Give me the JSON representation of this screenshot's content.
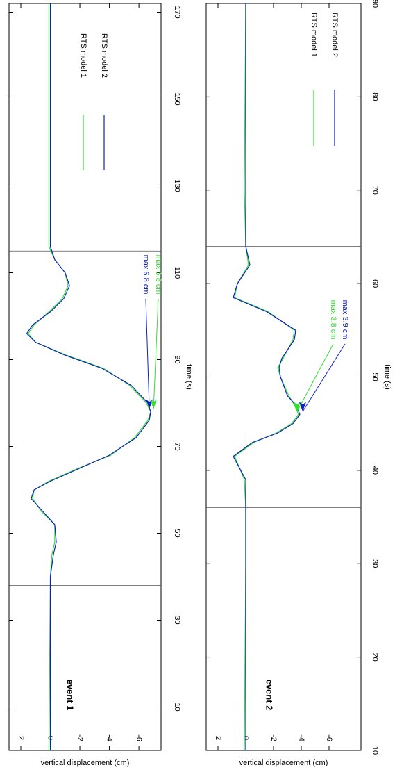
{
  "chart_data": [
    {
      "type": "line",
      "x_label": "time (s)",
      "y_label": "vertical displacement (cm)",
      "event_label": "event 1",
      "x": [
        0,
        40,
        45,
        48,
        52,
        55,
        58,
        60,
        62,
        65,
        68,
        72,
        76,
        78,
        80,
        84,
        88,
        91,
        94,
        96,
        98,
        101,
        104,
        107,
        110,
        113,
        116,
        140,
        172
      ],
      "series": [
        {
          "name": "RTS model 1",
          "color": "#33dd33",
          "values": [
            0.1,
            0,
            -0.1,
            -0.3,
            -0.3,
            0.6,
            1.2,
            1.1,
            0.1,
            -1.9,
            -4.1,
            -5.7,
            -6.6,
            -6.8,
            -6.5,
            -5.4,
            -3.6,
            -1.1,
            1.0,
            1.5,
            1.1,
            0.1,
            -0.8,
            -1.2,
            -1.0,
            -0.3,
            0.1,
            0.1,
            0.1
          ]
        },
        {
          "name": "RTS model 2",
          "color": "#1020c0",
          "values": [
            0,
            0,
            -0.2,
            -0.4,
            -0.3,
            0.5,
            1.3,
            1.1,
            0,
            -2.0,
            -4.0,
            -5.8,
            -6.7,
            -6.8,
            -6.6,
            -5.5,
            -3.5,
            -1.0,
            1.0,
            1.6,
            1.2,
            0,
            -0.9,
            -1.3,
            -1.0,
            -0.3,
            0,
            0,
            0
          ]
        }
      ],
      "annotations": [
        {
          "text": "max 6.8 cm",
          "series": 1,
          "x": 78
        },
        {
          "text": "max 6.8 cm",
          "series": 0,
          "x": 78
        }
      ],
      "vlines": [
        38,
        115
      ],
      "xlim": [
        0,
        172
      ],
      "xticks": [
        10,
        30,
        50,
        70,
        90,
        110,
        130,
        150,
        170
      ],
      "ylim": [
        -7.5,
        2.8
      ],
      "yticks": [
        2,
        0,
        -2,
        -4,
        -6
      ]
    },
    {
      "type": "line",
      "x_label": "time (s)",
      "y_label": "vertical displacement (cm)",
      "event_label": "event 2",
      "x": [
        10,
        30,
        36,
        39,
        41.5,
        43,
        44,
        45,
        46,
        47,
        48,
        50,
        51,
        52,
        54,
        55,
        57,
        58.5,
        60,
        62,
        64,
        70,
        90
      ],
      "series": [
        {
          "name": "RTS model 1",
          "color": "#33dd33",
          "values": [
            0.1,
            0,
            0,
            0.1,
            0.8,
            -0.6,
            -2.2,
            -3.3,
            -3.8,
            -3.5,
            -3.1,
            -2.5,
            -2.3,
            -2.7,
            -3.4,
            -3.5,
            -1.6,
            0.8,
            0.6,
            -0.2,
            0,
            0.1,
            0
          ]
        },
        {
          "name": "RTS model 2",
          "color": "#1020c0",
          "values": [
            0,
            0,
            0,
            0,
            0.9,
            -0.5,
            -2.3,
            -3.4,
            -3.9,
            -3.6,
            -3.0,
            -2.5,
            -2.4,
            -2.6,
            -3.5,
            -3.6,
            -1.5,
            0.9,
            0.6,
            -0.3,
            0,
            0,
            0
          ]
        }
      ],
      "annotations": [
        {
          "text": "max 3.8 cm",
          "series": 0,
          "x": 46
        },
        {
          "text": "max 3.9 cm",
          "series": 1,
          "x": 46
        }
      ],
      "vlines": [
        36,
        64
      ],
      "xlim": [
        10,
        90
      ],
      "xticks": [
        10,
        20,
        30,
        40,
        50,
        60,
        70,
        80,
        90
      ],
      "ylim": [
        -8.3,
        2.85
      ],
      "yticks": [
        2,
        0,
        -2,
        -4,
        -6
      ]
    }
  ]
}
